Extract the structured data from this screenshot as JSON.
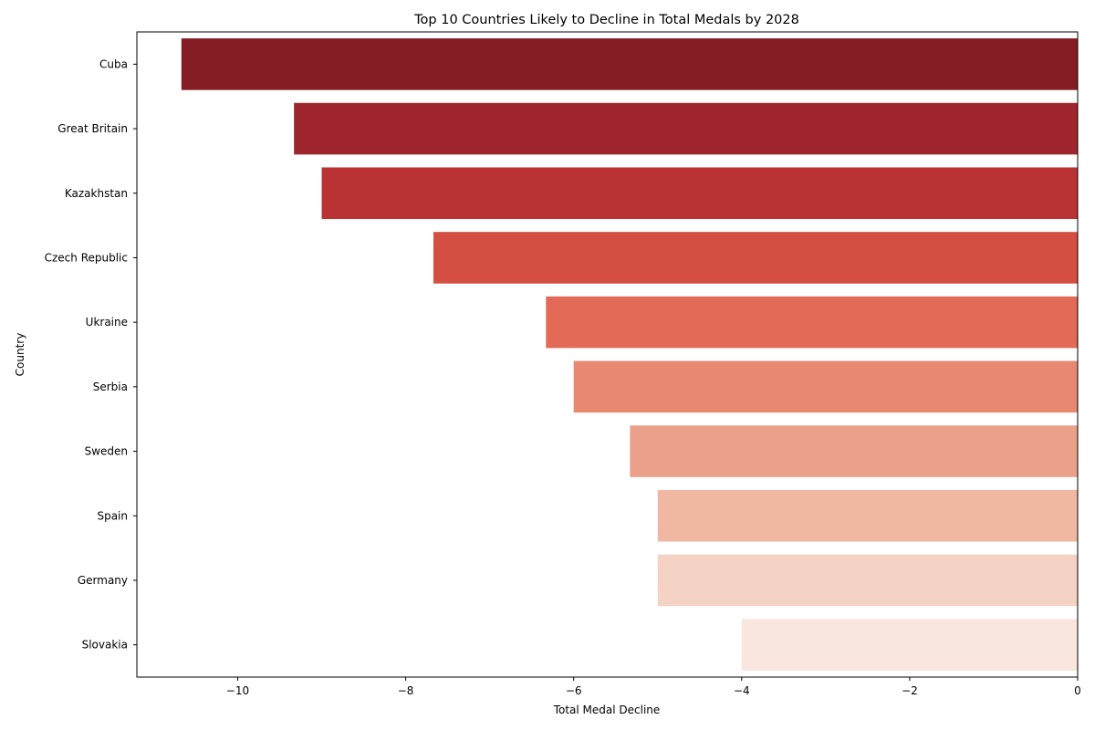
{
  "chart_data": {
    "type": "bar",
    "orientation": "horizontal",
    "title": "Top 10 Countries Likely to Decline in Total Medals by 2028",
    "xlabel": "Total Medal Decline",
    "ylabel": "Country",
    "categories": [
      "Cuba",
      "Great Britain",
      "Kazakhstan",
      "Czech Republic",
      "Ukraine",
      "Serbia",
      "Sweden",
      "Spain",
      "Germany",
      "Slovakia"
    ],
    "values": [
      -10.67,
      -9.33,
      -9.0,
      -7.67,
      -6.33,
      -6.0,
      -5.33,
      -5.0,
      -5.0,
      -4.0
    ],
    "colors": [
      "#831c23",
      "#a0262d",
      "#bb3235",
      "#d44f42",
      "#e26a56",
      "#e88870",
      "#eba089",
      "#f0b8a3",
      "#f4d3c5",
      "#f9e7df"
    ],
    "xlim": [
      -11.2,
      0
    ],
    "xticks": [
      -10,
      -8,
      -6,
      -4,
      -2,
      0
    ],
    "xtick_labels": [
      "−10",
      "−8",
      "−6",
      "−4",
      "−2",
      "0"
    ],
    "grid": false,
    "legend": "none"
  }
}
